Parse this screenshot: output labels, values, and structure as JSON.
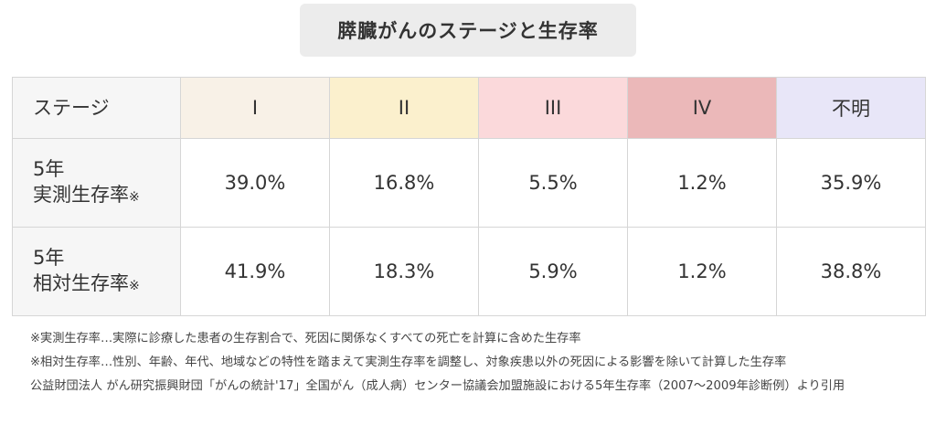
{
  "title": "膵臓がんのステージと生存率",
  "table": {
    "header": {
      "label": "ステージ",
      "stages": [
        {
          "label": "I",
          "color": "#f8f1e7"
        },
        {
          "label": "II",
          "color": "#fbf0cd"
        },
        {
          "label": "III",
          "color": "#fbd9db"
        },
        {
          "label": "IV",
          "color": "#ebb8b9"
        },
        {
          "label": "不明",
          "color": "#e8e6f8"
        }
      ]
    },
    "rows": [
      {
        "line1": "5年",
        "line2": "実測生存率",
        "mark": "※",
        "values": [
          "39.0%",
          "16.8%",
          "5.5%",
          "1.2%",
          "35.9%"
        ]
      },
      {
        "line1": "5年",
        "line2": "相対生存率",
        "mark": "※",
        "values": [
          "41.9%",
          "18.3%",
          "5.9%",
          "1.2%",
          "38.8%"
        ]
      }
    ]
  },
  "notes": [
    "※実測生存率…実際に診療した患者の生存割合で、死因に関係なくすべての死亡を計算に含めた生存率",
    "※相対生存率…性別、年齢、年代、地域などの特性を踏まえて実測生存率を調整し、対象疾患以外の死因による影響を除いて計算した生存率",
    "公益財団法人 がん研究振興財団「がんの統計'17」全国がん（成人病）センター協議会加盟施設における5年生存率（2007〜2009年診断例）より引用"
  ]
}
